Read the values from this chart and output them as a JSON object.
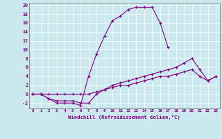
{
  "xlabel": "Windchill (Refroidissement éolien,°C)",
  "background_color": "#cce8ef",
  "line_color": "#800080",
  "grid_color": "#b0d8e0",
  "xlim": [
    -0.5,
    23.5
  ],
  "ylim": [
    -3.2,
    20.5
  ],
  "xticks": [
    0,
    1,
    2,
    3,
    4,
    5,
    6,
    7,
    8,
    9,
    10,
    11,
    12,
    13,
    14,
    15,
    16,
    17,
    18,
    19,
    20,
    21,
    22,
    23
  ],
  "yticks": [
    -2,
    0,
    2,
    4,
    6,
    8,
    10,
    12,
    14,
    16,
    18,
    20
  ],
  "series": [
    {
      "x": [
        0,
        1,
        2,
        3,
        4,
        5,
        6,
        7,
        8,
        9,
        10,
        11,
        12,
        13,
        14,
        15,
        16,
        17
      ],
      "y": [
        0,
        0,
        -1,
        -2,
        -2,
        -2,
        -2.5,
        4,
        9,
        13,
        16.5,
        17.5,
        19,
        19.5,
        19.5,
        19.5,
        16,
        10.5
      ]
    },
    {
      "x": [
        0,
        1,
        2,
        3,
        4,
        5,
        6,
        7,
        8,
        9,
        10,
        11,
        12,
        13,
        14,
        15,
        16,
        17,
        18,
        19,
        20,
        21,
        22,
        23
      ],
      "y": [
        0,
        0,
        -1,
        -1.5,
        -1.5,
        -1.5,
        -2,
        -2,
        0,
        1,
        2,
        2.5,
        3,
        3.5,
        4,
        4.5,
        5,
        5.5,
        6,
        7,
        8,
        5.5,
        3,
        4
      ]
    },
    {
      "x": [
        0,
        1,
        2,
        3,
        4,
        5,
        6,
        7,
        8,
        9,
        10,
        11,
        12,
        13,
        14,
        15,
        16,
        17,
        18,
        19,
        20,
        21,
        22,
        23
      ],
      "y": [
        0,
        0,
        0,
        0,
        0,
        0,
        0,
        0,
        0.5,
        1,
        1.5,
        2,
        2,
        2.5,
        3,
        3.5,
        4,
        4,
        4.5,
        5,
        5.5,
        4,
        3,
        4
      ]
    }
  ]
}
